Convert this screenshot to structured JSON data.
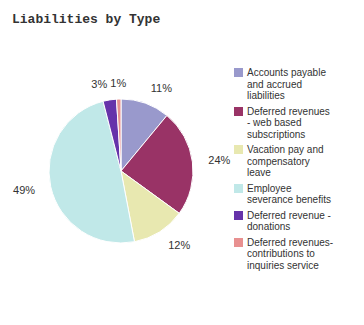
{
  "chart_data": {
    "type": "pie",
    "title": "Liabilities by Type",
    "categories": [
      "Accounts payable\nand accrued\nliabilities",
      "Deferred revenues\n- web based\nsubscriptions",
      "Vacation pay and\ncompensatory\nleave",
      "Employee\nseverance benefits",
      "Deferred revenue -\ndonations",
      "Deferred revenues-\ncontributions to\ninquiries service"
    ],
    "values": [
      11,
      24,
      12,
      49,
      3,
      1
    ],
    "value_labels": [
      "11%",
      "24%",
      "12%",
      "49%",
      "3%",
      "1%"
    ],
    "colors": [
      "#9999cc",
      "#993366",
      "#e8e8b0",
      "#c0e8e8",
      "#6633aa",
      "#e89090"
    ],
    "legend": "right",
    "data_labels": true
  }
}
